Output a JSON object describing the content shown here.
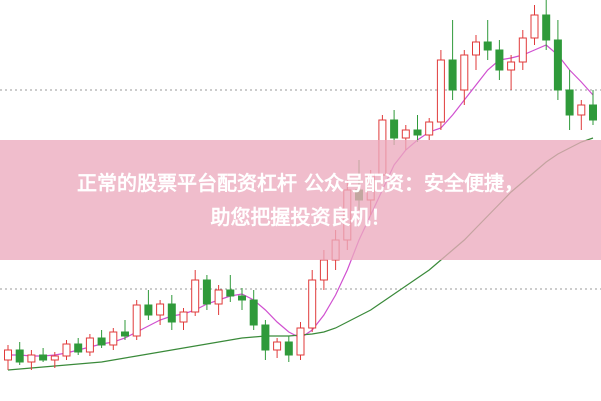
{
  "chart_data": {
    "type": "candlestick",
    "ylim": [
      0,
      400
    ],
    "up_color": "#e03a3a",
    "down_color": "#2f9a3a",
    "open": [
      40,
      50,
      38,
      45,
      40,
      44,
      56,
      48,
      62,
      55,
      68,
      64,
      95,
      85,
      96,
      78,
      88,
      120,
      96,
      110,
      104,
      100,
      75,
      50,
      58,
      45,
      72,
      120,
      140,
      160,
      210,
      200,
      225,
      280,
      262,
      270,
      265,
      278,
      340,
      310,
      345,
      358,
      350,
      330,
      338,
      362,
      385,
      360,
      310,
      285,
      295
    ],
    "high": [
      55,
      58,
      50,
      52,
      48,
      60,
      62,
      66,
      70,
      72,
      80,
      100,
      110,
      100,
      105,
      92,
      130,
      125,
      115,
      125,
      112,
      110,
      80,
      62,
      64,
      78,
      130,
      150,
      170,
      220,
      240,
      230,
      285,
      290,
      275,
      285,
      282,
      350,
      380,
      350,
      365,
      380,
      360,
      345,
      370,
      395,
      400,
      380,
      330,
      300,
      310
    ],
    "low": [
      30,
      35,
      30,
      38,
      32,
      40,
      45,
      44,
      52,
      50,
      60,
      60,
      80,
      75,
      70,
      70,
      84,
      90,
      85,
      98,
      90,
      70,
      40,
      42,
      38,
      40,
      68,
      110,
      130,
      150,
      190,
      185,
      220,
      255,
      250,
      258,
      260,
      270,
      300,
      295,
      330,
      340,
      320,
      310,
      330,
      355,
      350,
      300,
      270,
      270,
      275
    ],
    "close": [
      50,
      38,
      45,
      40,
      44,
      56,
      48,
      62,
      55,
      68,
      64,
      95,
      85,
      96,
      78,
      88,
      120,
      96,
      110,
      104,
      100,
      75,
      50,
      58,
      45,
      72,
      120,
      140,
      160,
      210,
      200,
      225,
      280,
      262,
      270,
      265,
      278,
      340,
      310,
      345,
      358,
      350,
      330,
      338,
      362,
      385,
      360,
      310,
      285,
      295,
      280
    ],
    "series": [
      {
        "color": "#d050d0",
        "values": [
          45,
          45,
          44,
          44,
          45,
          47,
          50,
          53,
          56,
          58,
          62,
          68,
          74,
          80,
          84,
          86,
          90,
          96,
          100,
          104,
          106,
          100,
          90,
          78,
          68,
          62,
          70,
          85,
          105,
          130,
          160,
          185,
          210,
          235,
          250,
          260,
          268,
          272,
          285,
          300,
          315,
          330,
          340,
          342,
          345,
          350,
          355,
          345,
          330,
          318,
          305
        ]
      },
      {
        "color": "#3a8a3a",
        "values": [
          30,
          31,
          32,
          33,
          34,
          35,
          36,
          37,
          38,
          40,
          42,
          44,
          46,
          48,
          50,
          52,
          54,
          56,
          58,
          60,
          62,
          63,
          64,
          64,
          64,
          65,
          66,
          68,
          72,
          78,
          84,
          90,
          98,
          106,
          114,
          122,
          130,
          140,
          150,
          160,
          172,
          184,
          196,
          208,
          218,
          228,
          238,
          246,
          252,
          258,
          262
        ]
      }
    ]
  },
  "banner": {
    "line1": "正常的股票平台配资杠杆 公众号配资：安全便捷，",
    "line2": "助您把握投资良机！"
  }
}
